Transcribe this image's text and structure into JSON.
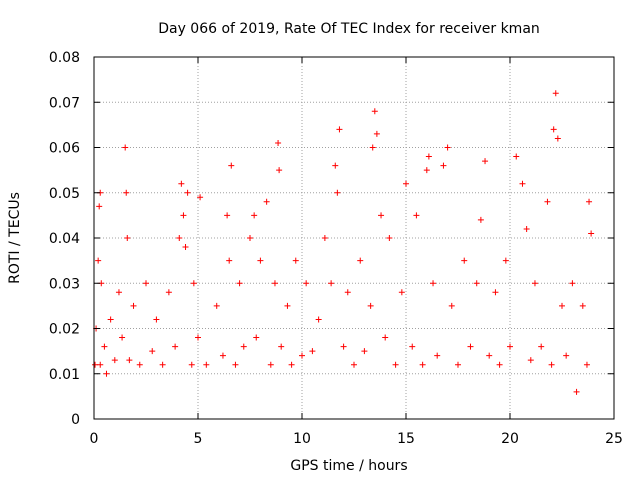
{
  "chart_data": {
    "type": "scatter",
    "title": "Day 066 of 2019, Rate Of TEC Index for receiver kman",
    "xlabel": "GPS time / hours",
    "ylabel": "ROTI / TECUs",
    "xlim": [
      0,
      25
    ],
    "ylim": [
      0,
      0.08
    ],
    "xticks": [
      0,
      5,
      10,
      15,
      20,
      25
    ],
    "xtick_labels": [
      "0",
      "5",
      "10",
      "15",
      "20",
      "25"
    ],
    "yticks": [
      0,
      0.01,
      0.02,
      0.03,
      0.04,
      0.05,
      0.06,
      0.07,
      0.08
    ],
    "ytick_labels": [
      "0",
      "0.01",
      "0.02",
      "0.03",
      "0.04",
      "0.05",
      "0.06",
      "0.07",
      "0.08"
    ],
    "grid": true,
    "marker": "+",
    "series": [
      {
        "name": "ROTI",
        "color": "#ff0000",
        "x": [
          0.05,
          0.1,
          0.2,
          0.25,
          0.3,
          0.3,
          0.35,
          0.5,
          0.6,
          0.8,
          1.0,
          1.2,
          1.35,
          1.5,
          1.55,
          1.6,
          1.7,
          1.9,
          2.2,
          2.5,
          2.8,
          3.0,
          3.3,
          3.6,
          3.9,
          4.1,
          4.2,
          4.3,
          4.4,
          4.5,
          4.7,
          4.8,
          5.0,
          5.1,
          5.4,
          5.9,
          6.2,
          6.4,
          6.5,
          6.6,
          6.8,
          7.0,
          7.2,
          7.5,
          7.7,
          7.8,
          8.0,
          8.3,
          8.5,
          8.7,
          8.85,
          8.9,
          9.0,
          9.3,
          9.5,
          9.7,
          10.0,
          10.2,
          10.5,
          10.8,
          11.1,
          11.4,
          11.6,
          11.7,
          11.8,
          12.0,
          12.2,
          12.5,
          12.8,
          13.0,
          13.3,
          13.4,
          13.5,
          13.6,
          13.8,
          14.0,
          14.2,
          14.5,
          14.8,
          15.0,
          15.3,
          15.5,
          15.8,
          16.0,
          16.1,
          16.3,
          16.5,
          16.8,
          17.0,
          17.2,
          17.5,
          17.8,
          18.1,
          18.4,
          18.6,
          18.8,
          19.0,
          19.3,
          19.5,
          19.8,
          20.0,
          20.3,
          20.6,
          20.8,
          21.0,
          21.2,
          21.5,
          21.8,
          22.0,
          22.1,
          22.2,
          22.3,
          22.5,
          22.7,
          23.0,
          23.2,
          23.5,
          23.7,
          23.8,
          23.9
        ],
        "y": [
          0.012,
          0.02,
          0.035,
          0.047,
          0.05,
          0.012,
          0.03,
          0.016,
          0.01,
          0.022,
          0.013,
          0.028,
          0.018,
          0.06,
          0.05,
          0.04,
          0.013,
          0.025,
          0.012,
          0.03,
          0.015,
          0.022,
          0.012,
          0.028,
          0.016,
          0.04,
          0.052,
          0.045,
          0.038,
          0.05,
          0.012,
          0.03,
          0.018,
          0.049,
          0.012,
          0.025,
          0.014,
          0.045,
          0.035,
          0.056,
          0.012,
          0.03,
          0.016,
          0.04,
          0.045,
          0.018,
          0.035,
          0.048,
          0.012,
          0.03,
          0.061,
          0.055,
          0.016,
          0.025,
          0.012,
          0.035,
          0.014,
          0.03,
          0.015,
          0.022,
          0.04,
          0.03,
          0.056,
          0.05,
          0.064,
          0.016,
          0.028,
          0.012,
          0.035,
          0.015,
          0.025,
          0.06,
          0.068,
          0.063,
          0.045,
          0.018,
          0.04,
          0.012,
          0.028,
          0.052,
          0.016,
          0.045,
          0.012,
          0.055,
          0.058,
          0.03,
          0.014,
          0.056,
          0.06,
          0.025,
          0.012,
          0.035,
          0.016,
          0.03,
          0.044,
          0.057,
          0.014,
          0.028,
          0.012,
          0.035,
          0.016,
          0.058,
          0.052,
          0.042,
          0.013,
          0.03,
          0.016,
          0.048,
          0.012,
          0.064,
          0.072,
          0.062,
          0.025,
          0.014,
          0.03,
          0.006,
          0.025,
          0.012,
          0.048,
          0.041
        ]
      }
    ]
  }
}
